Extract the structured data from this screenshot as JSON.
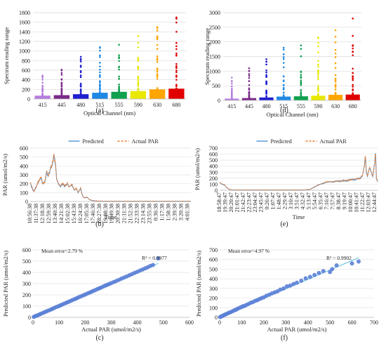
{
  "figure": {
    "panel_labels": [
      "(a)",
      "(d)",
      "(b)",
      "(e)",
      "(c)",
      "(f)"
    ]
  },
  "chart_data": [
    {
      "id": "a",
      "type": "bar",
      "label": "(a)",
      "xlabel": "Optical Channel (nm)",
      "ylabel": "Spectrum reading range",
      "categories": [
        "415",
        "445",
        "480",
        "515",
        "555",
        "590",
        "630",
        "680"
      ],
      "values": [
        70,
        80,
        100,
        130,
        150,
        165,
        200,
        215
      ],
      "outlier_max": [
        490,
        610,
        880,
        1080,
        1130,
        1310,
        1500,
        1700
      ],
      "colors": [
        "#b57edc",
        "#7a2a8a",
        "#1f1fd0",
        "#1e88e5",
        "#10a050",
        "#e8e800",
        "#ffa500",
        "#e00000"
      ],
      "ylim": [
        0,
        1800
      ],
      "yticks": [
        0,
        200,
        400,
        600,
        800,
        1000,
        1200,
        1400,
        1600,
        1800
      ],
      "grid": true
    },
    {
      "id": "d",
      "type": "bar",
      "label": "(d)",
      "xlabel": "Optical Channel (nm)",
      "ylabel": "Spectrum reading range",
      "categories": [
        "415",
        "445",
        "480",
        "515",
        "555",
        "590",
        "630",
        "680"
      ],
      "values": [
        60,
        80,
        100,
        130,
        140,
        160,
        190,
        200
      ],
      "outlier_max": [
        780,
        1100,
        1410,
        1800,
        1880,
        2150,
        2400,
        2800
      ],
      "colors": [
        "#b57edc",
        "#7a2a8a",
        "#1f1fd0",
        "#1e88e5",
        "#10a050",
        "#e8e800",
        "#ffa500",
        "#e00000"
      ],
      "ylim": [
        0,
        3000
      ],
      "yticks": [
        0,
        500,
        1000,
        1500,
        2000,
        2500,
        3000
      ],
      "grid": true
    },
    {
      "id": "b",
      "type": "line",
      "label": "(b)",
      "xlabel": "Time",
      "ylabel": "PAR (umol/m2/s)",
      "ylim": [
        0,
        600
      ],
      "yticks": [
        0,
        100,
        200,
        300,
        400,
        500,
        600
      ],
      "xtick_labels": [
        "10:56:38",
        "11:37:38",
        "12:18:38",
        "12:59:38",
        "13:40:38",
        "14:21:38",
        "15:02:38",
        "15:43:38",
        "16:24:38",
        "17:05:38",
        "17:46:38",
        "18:27:38",
        "19:08:38",
        "19:49:38",
        "20:30:38",
        "21:11:38",
        "21:52:38",
        "22:33:38",
        "23:14:38",
        "23:55:38",
        "0:36:38",
        "1:17:38",
        "1:58:38",
        "2:39:38",
        "3:20:38",
        "4:01:38"
      ],
      "series": [
        {
          "name": "Predicted",
          "color": "#5b9bd5",
          "dash": false
        },
        {
          "name": "Actual PAR",
          "color": "#ed7d31",
          "dash": true
        }
      ],
      "profile": [
        [
          0,
          210
        ],
        [
          0.3,
          150
        ],
        [
          0.6,
          110
        ],
        [
          1,
          170
        ],
        [
          1.4,
          240
        ],
        [
          1.7,
          270
        ],
        [
          2,
          200
        ],
        [
          2.3,
          220
        ],
        [
          2.6,
          330
        ],
        [
          2.9,
          290
        ],
        [
          3.2,
          380
        ],
        [
          3.5,
          420
        ],
        [
          3.75,
          520
        ],
        [
          4,
          420
        ],
        [
          4.2,
          260
        ],
        [
          4.5,
          190
        ],
        [
          4.8,
          170
        ],
        [
          5.1,
          200
        ],
        [
          5.5,
          170
        ],
        [
          5.9,
          200
        ],
        [
          6.2,
          160
        ],
        [
          6.6,
          190
        ],
        [
          7,
          130
        ],
        [
          7.3,
          150
        ],
        [
          7.6,
          100
        ],
        [
          8,
          150
        ],
        [
          8.3,
          60
        ],
        [
          8.6,
          40
        ],
        [
          9,
          50
        ],
        [
          9.4,
          20
        ],
        [
          10,
          8
        ],
        [
          11,
          3
        ],
        [
          12,
          2
        ],
        [
          25.5,
          2
        ]
      ]
    },
    {
      "id": "e",
      "type": "line",
      "label": "(e)",
      "xlabel": "Time",
      "ylabel": "PAR (umol/m2/s)",
      "ylim": [
        0,
        700
      ],
      "yticks": [
        0,
        100,
        200,
        300,
        400,
        500,
        600,
        700
      ],
      "xtick_labels": [
        "18:58:47",
        "19:39:47",
        "20:20:47",
        "21:01:47",
        "21:42:47",
        "22:23:47",
        "23:04:47",
        "23:45:47",
        "0:26:47",
        "1:07:47",
        "1:48:47",
        "2:29:47",
        "3:10:47",
        "3:51:47",
        "4:32:47",
        "5:13:47",
        "5:54:47",
        "6:35:47",
        "7:16:47",
        "7:57:47",
        "8:38:47",
        "9:19:47",
        "10:00:47",
        "10:41:47",
        "11:22:47",
        "12:03:47",
        "12:44:47"
      ],
      "series": [
        {
          "name": "Predicted",
          "color": "#5b9bd5",
          "dash": false
        },
        {
          "name": "Actual PAR",
          "color": "#ed7d31",
          "dash": true
        }
      ],
      "profile": [
        [
          0,
          130
        ],
        [
          0.4,
          100
        ],
        [
          0.8,
          90
        ],
        [
          1.2,
          40
        ],
        [
          1.6,
          15
        ],
        [
          2,
          5
        ],
        [
          3,
          3
        ],
        [
          14,
          3
        ],
        [
          15,
          10
        ],
        [
          15.5,
          30
        ],
        [
          16,
          60
        ],
        [
          16.6,
          90
        ],
        [
          17.2,
          110
        ],
        [
          17.8,
          130
        ],
        [
          18.4,
          140
        ],
        [
          19,
          140
        ],
        [
          19.6,
          150
        ],
        [
          20.2,
          150
        ],
        [
          20.8,
          160
        ],
        [
          21.4,
          160
        ],
        [
          22,
          175
        ],
        [
          22.6,
          175
        ],
        [
          23.2,
          190
        ],
        [
          23.6,
          200
        ],
        [
          24,
          250
        ],
        [
          24.3,
          420
        ],
        [
          24.45,
          600
        ],
        [
          24.6,
          300
        ],
        [
          24.8,
          230
        ],
        [
          25.1,
          380
        ],
        [
          25.4,
          320
        ],
        [
          25.7,
          220
        ],
        [
          26,
          450
        ],
        [
          26.15,
          620
        ],
        [
          26.3,
          200
        ],
        [
          26.6,
          110
        ]
      ]
    },
    {
      "id": "c",
      "type": "scatter",
      "label": "(c)",
      "xlabel": "Actual PAR (umol/m2/s)",
      "ylabel": "Predicted PAR (umol/m2/s)",
      "xlim": [
        0,
        600
      ],
      "ylim": [
        0,
        600
      ],
      "xticks": [
        0,
        100,
        200,
        300,
        400,
        500,
        600
      ],
      "yticks": [
        0,
        100,
        200,
        300,
        400,
        500,
        600
      ],
      "annotations": {
        "mean_error": "Mean error=2.79 %",
        "r2": "R² = 0.9977"
      },
      "point_color": "#5b7fd6",
      "trend_color": "#5bc0de",
      "trend": {
        "slope": 1.0,
        "intercept": 0
      },
      "points": {
        "x": [
          3,
          8,
          12,
          18,
          25,
          30,
          38,
          45,
          52,
          60,
          68,
          75,
          82,
          90,
          98,
          105,
          112,
          120,
          128,
          135,
          142,
          150,
          158,
          165,
          172,
          180,
          188,
          195,
          202,
          210,
          218,
          225,
          232,
          240,
          248,
          255,
          262,
          270,
          278,
          285,
          292,
          300,
          310,
          320,
          330,
          340,
          350,
          360,
          370,
          380,
          390,
          400,
          410,
          420,
          430,
          440,
          450,
          460,
          480
        ],
        "y": [
          4,
          9,
          13,
          19,
          26,
          31,
          39,
          46,
          53,
          61,
          69,
          76,
          84,
          92,
          99,
          106,
          114,
          122,
          130,
          137,
          144,
          152,
          160,
          167,
          175,
          183,
          191,
          198,
          205,
          213,
          221,
          228,
          236,
          244,
          252,
          259,
          266,
          275,
          283,
          290,
          296,
          305,
          314,
          324,
          334,
          345,
          355,
          365,
          375,
          385,
          396,
          405,
          416,
          426,
          436,
          446,
          458,
          466,
          525
        ]
      }
    },
    {
      "id": "f",
      "type": "scatter",
      "label": "(f)",
      "xlabel": "Actual PAR (umol/m2/s)",
      "ylabel": "Predicted PAR (umol/m2/s)",
      "xlim": [
        0,
        700
      ],
      "ylim": [
        0,
        700
      ],
      "xticks": [
        0,
        100,
        200,
        300,
        400,
        500,
        600,
        700
      ],
      "yticks": [
        0,
        100,
        200,
        300,
        400,
        500,
        600,
        700
      ],
      "annotations": {
        "mean_error": "Mean error=4.97 %",
        "r2": "R² = 0.9902"
      },
      "point_color": "#5b7fd6",
      "trend_color": "#5bc0de",
      "trend": {
        "slope": 0.98,
        "intercept": 2
      },
      "points": {
        "x": [
          2,
          6,
          10,
          15,
          20,
          26,
          32,
          38,
          45,
          52,
          60,
          68,
          75,
          82,
          90,
          98,
          105,
          112,
          120,
          130,
          140,
          150,
          160,
          170,
          180,
          190,
          200,
          212,
          225,
          238,
          250,
          262,
          275,
          290,
          305,
          320,
          335,
          350,
          370,
          390,
          410,
          430,
          450,
          470,
          500,
          510,
          530,
          600,
          630
        ],
        "y": [
          3,
          7,
          12,
          17,
          24,
          30,
          36,
          43,
          50,
          56,
          66,
          74,
          80,
          90,
          98,
          106,
          115,
          118,
          128,
          138,
          150,
          158,
          170,
          178,
          190,
          200,
          208,
          224,
          235,
          250,
          260,
          270,
          288,
          300,
          322,
          330,
          346,
          360,
          380,
          405,
          420,
          440,
          460,
          480,
          470,
          500,
          540,
          560,
          580
        ]
      }
    }
  ]
}
